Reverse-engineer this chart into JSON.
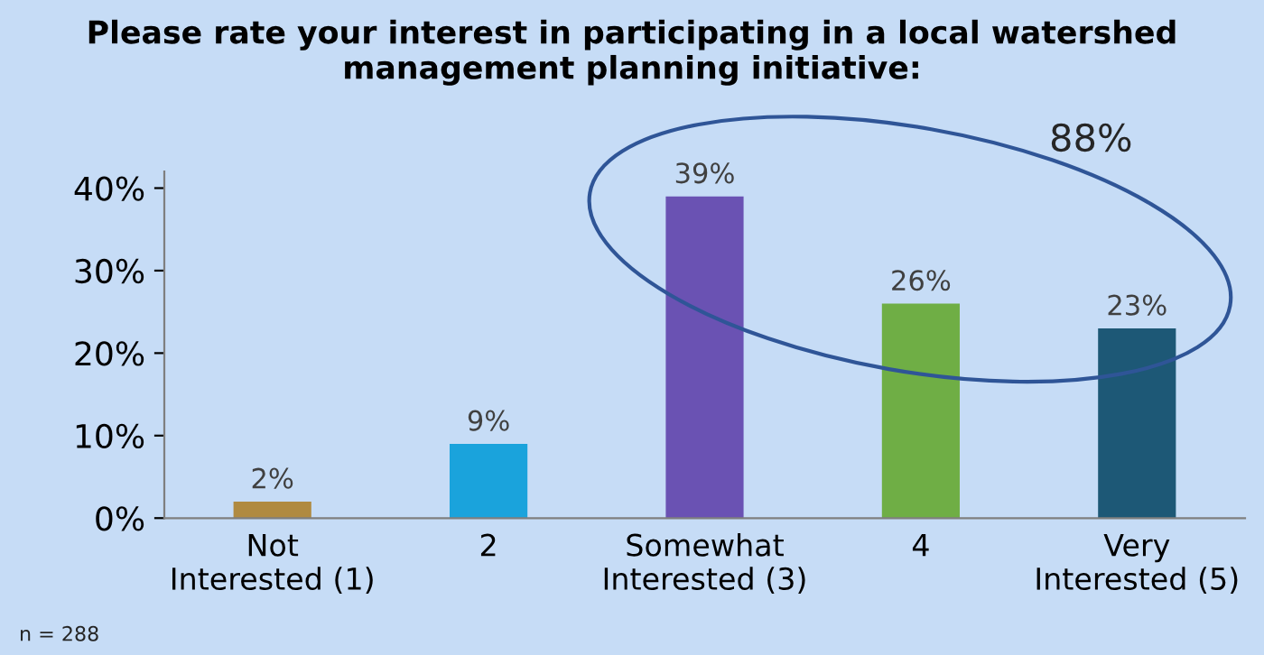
{
  "chart_data": {
    "type": "bar",
    "title": "Please rate your interest in participating in a local watershed management planning initiative:",
    "categories": [
      "Not\nInterested (1)",
      "2",
      "Somewhat\nInterested (3)",
      "4",
      "Very\nInterested (5)"
    ],
    "values": [
      2,
      9,
      39,
      26,
      23
    ],
    "colors": [
      "#b08a40",
      "#1aa3dc",
      "#6a52b3",
      "#6fae45",
      "#1d5876"
    ],
    "value_labels": [
      "2%",
      "9%",
      "39%",
      "26%",
      "23%"
    ],
    "ylim": [
      0,
      42
    ],
    "yticks": [
      {
        "value": 0,
        "label": "0%"
      },
      {
        "value": 10,
        "label": "10%"
      },
      {
        "value": 20,
        "label": "20%"
      },
      {
        "value": 30,
        "label": "30%"
      },
      {
        "value": 40,
        "label": "40%"
      }
    ],
    "grid": false,
    "legend": false,
    "annotations": [
      "88%",
      "n = 288"
    ]
  }
}
